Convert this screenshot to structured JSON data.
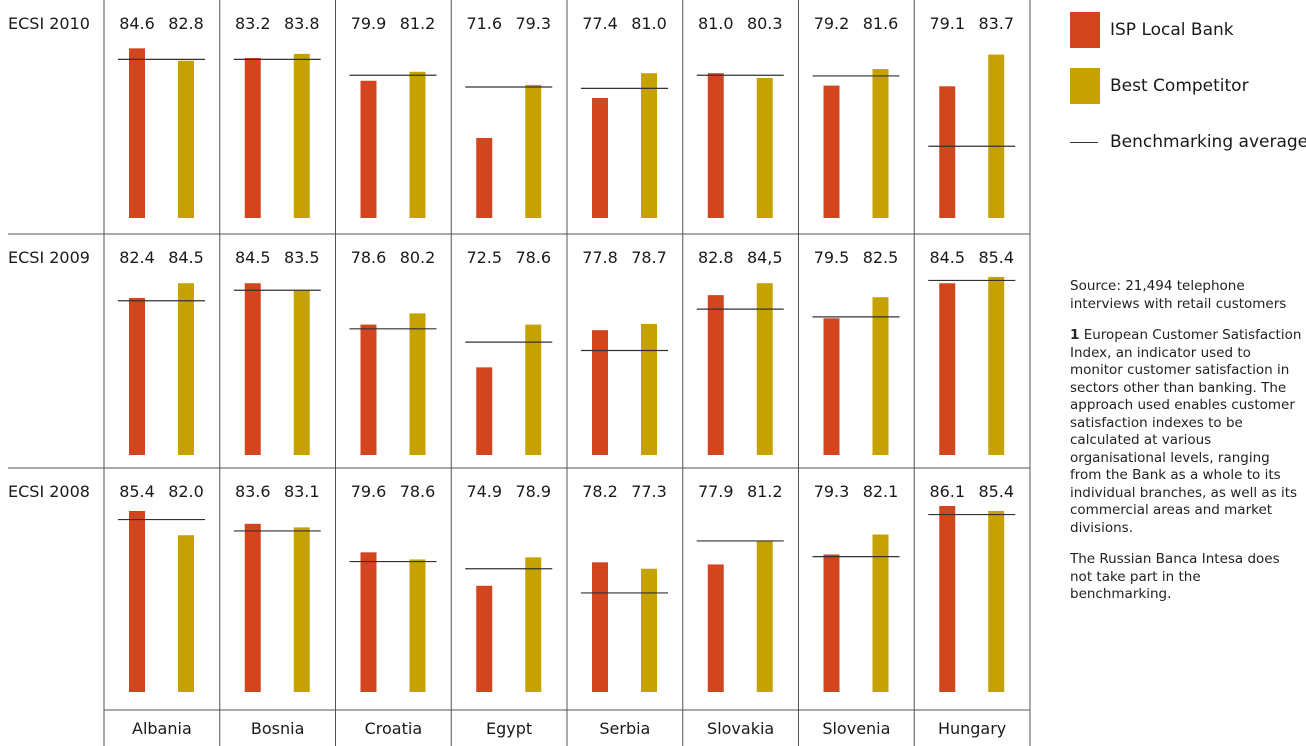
{
  "colors": {
    "local_bank": "#d2451e",
    "competitor": "#c6a200",
    "benchmark_line": "#333333",
    "grid": "#555555"
  },
  "chart_data": {
    "type": "bar",
    "categories": [
      "Albania",
      "Bosnia",
      "Croatia",
      "Egypt",
      "Serbia",
      "Slovakia",
      "Slovenia",
      "Hungary"
    ],
    "series_names": [
      "ISP Local Bank",
      "Best Competitor"
    ],
    "panels": [
      {
        "label": "ECSI 2010",
        "local_bank_labels": [
          "84.6",
          "83.2",
          "79.9",
          "71.6",
          "77.4",
          "81.0",
          "79.2",
          "79.1"
        ],
        "competitor_labels": [
          "82.8",
          "83.8",
          "81.2",
          "79.3",
          "81.0",
          "80.3",
          "81.6",
          "83.7"
        ],
        "local_bank": [
          84.6,
          83.2,
          79.9,
          71.6,
          77.4,
          81.0,
          79.2,
          79.1
        ],
        "competitor": [
          82.8,
          83.8,
          81.2,
          79.3,
          81.0,
          80.3,
          81.6,
          83.7
        ],
        "benchmark": [
          83.0,
          83.0,
          80.7,
          79.0,
          78.8,
          80.7,
          80.6,
          70.4
        ]
      },
      {
        "label": "ECSI 2009",
        "local_bank_labels": [
          "82.4",
          "84.5",
          "78.6",
          "72.5",
          "77.8",
          "82.8",
          "79.5",
          "84.5"
        ],
        "competitor_labels": [
          "84.5",
          "83.5",
          "80.2",
          "78.6",
          "78.7",
          "84,5",
          "82.5",
          "85.4"
        ],
        "local_bank": [
          82.4,
          84.5,
          78.6,
          72.5,
          77.8,
          82.8,
          79.5,
          84.5
        ],
        "competitor": [
          84.5,
          83.5,
          80.2,
          78.6,
          78.7,
          84.5,
          82.5,
          85.4
        ],
        "benchmark": [
          82.0,
          83.5,
          78.0,
          76.1,
          74.9,
          80.8,
          79.7,
          84.9
        ]
      },
      {
        "label": "ECSI 2008",
        "local_bank_labels": [
          "85.4",
          "83.6",
          "79.6",
          "74.9",
          "78.2",
          "77.9",
          "79.3",
          "86.1"
        ],
        "competitor_labels": [
          "82.0",
          "83.1",
          "78.6",
          "78.9",
          "77.3",
          "81.2",
          "82.1",
          "85.4"
        ],
        "local_bank": [
          85.4,
          83.6,
          79.6,
          74.9,
          78.2,
          77.9,
          79.3,
          86.1
        ],
        "competitor": [
          82.0,
          83.1,
          78.6,
          78.9,
          77.3,
          81.2,
          82.1,
          85.4
        ],
        "benchmark": [
          84.2,
          82.6,
          78.3,
          77.3,
          73.9,
          81.2,
          79.0,
          84.9
        ]
      }
    ],
    "ylim": [
      0,
      86.1
    ],
    "grid": true
  },
  "legend": {
    "local_bank": "ISP Local Bank",
    "competitor": "Best Competitor",
    "benchmark": "Benchmarking average"
  },
  "notes": {
    "source": "Source: 21,494 telephone interviews with retail customers",
    "footnote_number": "1",
    "footnote_text": "European Customer Satisfaction Index, an indicator used to monitor customer satisfaction in sectors other than banking. The approach used enables customer satisfaction indexes to be calculated at various organisational levels, ranging from the Bank as a whole to its individual branches, as well as its commercial areas and market divisions.",
    "russia_note": "The Russian Banca Intesa does not take part in the benchmarking."
  }
}
